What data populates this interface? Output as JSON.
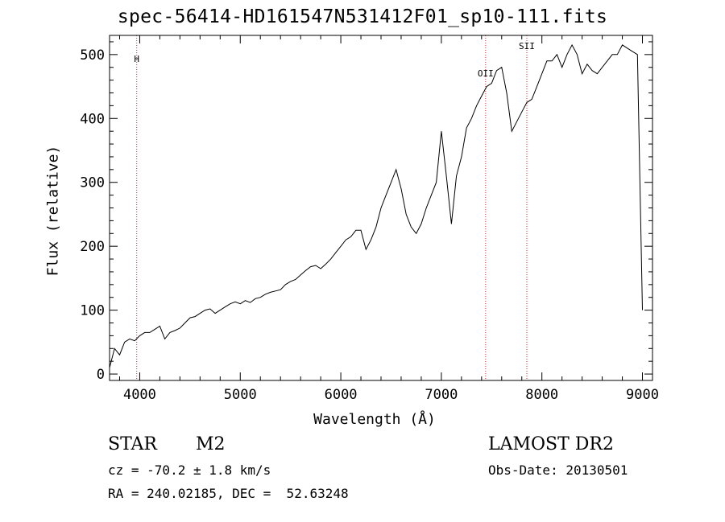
{
  "chart_data": {
    "type": "line",
    "title": "spec-56414-HD161547N531412F01_sp10-111.fits",
    "xlabel": "Wavelength (Å)",
    "ylabel": "Flux (relative)",
    "xlim": [
      3700,
      9100
    ],
    "ylim": [
      -10,
      530
    ],
    "xticks": [
      4000,
      5000,
      6000,
      7000,
      8000,
      9000
    ],
    "yticks": [
      0,
      100,
      200,
      300,
      400,
      500
    ],
    "grid": false,
    "line_color": "#000000",
    "marker_color": "#cc3333",
    "lines_marked": [
      {
        "label": "H",
        "x": 3970
      },
      {
        "label": "OII",
        "x": 7440
      },
      {
        "label": "SII",
        "x": 7850
      }
    ],
    "series": [
      {
        "x": [
          3700,
          3750,
          3800,
          3850,
          3900,
          3950,
          4000,
          4050,
          4100,
          4150,
          4200,
          4250,
          4300,
          4350,
          4400,
          4450,
          4500,
          4550,
          4600,
          4650,
          4700,
          4750,
          4800,
          4850,
          4900,
          4950,
          5000,
          5050,
          5100,
          5150,
          5200,
          5250,
          5300,
          5350,
          5400,
          5450,
          5500,
          5550,
          5600,
          5650,
          5700,
          5750,
          5800,
          5850,
          5900,
          5950,
          6000,
          6050,
          6100,
          6150,
          6200,
          6250,
          6300,
          6350,
          6400,
          6450,
          6500,
          6550,
          6600,
          6650,
          6700,
          6750,
          6800,
          6850,
          6900,
          6950,
          7000,
          7050,
          7100,
          7150,
          7200,
          7250,
          7300,
          7350,
          7400,
          7450,
          7500,
          7550,
          7600,
          7650,
          7700,
          7750,
          7800,
          7850,
          7900,
          7950,
          8000,
          8050,
          8100,
          8150,
          8200,
          8250,
          8300,
          8350,
          8400,
          8450,
          8500,
          8550,
          8600,
          8650,
          8700,
          8750,
          8800,
          8850,
          8900,
          8950,
          9000
        ],
        "y": [
          10,
          40,
          30,
          50,
          55,
          52,
          60,
          65,
          65,
          70,
          75,
          55,
          65,
          68,
          72,
          80,
          88,
          90,
          95,
          100,
          102,
          95,
          100,
          105,
          110,
          113,
          110,
          115,
          112,
          118,
          120,
          125,
          128,
          130,
          132,
          140,
          145,
          148,
          155,
          162,
          168,
          170,
          165,
          172,
          180,
          190,
          200,
          210,
          215,
          225,
          225,
          195,
          210,
          230,
          260,
          280,
          300,
          320,
          290,
          250,
          230,
          220,
          235,
          260,
          280,
          300,
          380,
          310,
          235,
          310,
          340,
          385,
          400,
          420,
          435,
          450,
          455,
          475,
          480,
          440,
          380,
          395,
          410,
          425,
          430,
          450,
          470,
          490,
          490,
          500,
          480,
          500,
          515,
          500,
          470,
          485,
          475,
          470,
          480,
          490,
          500,
          500,
          515,
          510,
          505,
          500,
          100
        ]
      }
    ],
    "annotations": {
      "object_type": "STAR",
      "subclass": "M2",
      "survey": "LAMOST DR2",
      "cz": "cz = -70.2 ± 1.8 km/s",
      "obs_date": "Obs-Date: 20130501",
      "coords": "RA = 240.02185, DEC =  52.63248"
    }
  }
}
